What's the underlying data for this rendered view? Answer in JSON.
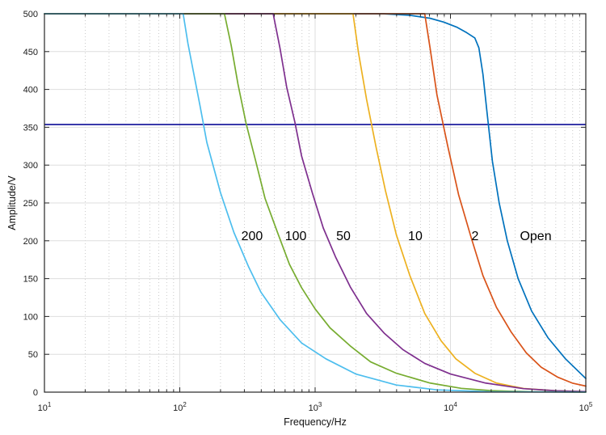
{
  "style": {
    "background": "#ffffff",
    "axis_color": "#262626",
    "grid_major_color": "#dedede",
    "grid_minor_color": "#a9a9a9",
    "tick_label_color": "#1a1a1a",
    "annotation_color": "#000000"
  },
  "chart_data": {
    "type": "line",
    "title": "",
    "xlabel": "Frequency/Hz",
    "ylabel": "Amplitude/V",
    "x_scale": "log10",
    "xlim_log10": [
      1,
      5
    ],
    "ylim": [
      0,
      500
    ],
    "y_ticks": [
      0,
      50,
      100,
      150,
      200,
      250,
      300,
      350,
      400,
      450,
      500
    ],
    "x_major_ticks_log10": [
      1,
      2,
      3,
      4,
      5
    ],
    "x_tick_labels": [
      {
        "base": "10",
        "exp": "1"
      },
      {
        "base": "10",
        "exp": "2"
      },
      {
        "base": "10",
        "exp": "3"
      },
      {
        "base": "10",
        "exp": "4"
      },
      {
        "base": "10",
        "exp": "5"
      }
    ],
    "x_minor_multiples": [
      2,
      3,
      4,
      5,
      6,
      7,
      8,
      9
    ],
    "grid": {
      "horizontal": "solid",
      "vertical_major": "solid",
      "vertical_minor": "dotted"
    },
    "legend_position": "none",
    "reference_line": {
      "amplitude": 353.6,
      "color": "#1E1E9E"
    },
    "series": [
      {
        "name": "200",
        "color": "#4DBEEE",
        "points": [
          [
            1,
            500
          ],
          [
            2.025,
            500
          ],
          [
            2.06,
            461
          ],
          [
            2.1,
            424
          ],
          [
            2.15,
            378
          ],
          [
            2.2,
            330
          ],
          [
            2.3,
            264
          ],
          [
            2.4,
            211
          ],
          [
            2.51,
            165
          ],
          [
            2.6,
            132
          ],
          [
            2.74,
            96
          ],
          [
            2.9,
            65
          ],
          [
            3.08,
            44
          ],
          [
            3.3,
            24
          ],
          [
            3.6,
            9.4
          ],
          [
            3.9,
            3
          ],
          [
            4.3,
            0.5
          ],
          [
            5.0,
            0.1
          ]
        ]
      },
      {
        "name": "100",
        "color": "#77AC30",
        "points": [
          [
            1,
            500
          ],
          [
            2.33,
            500
          ],
          [
            2.38,
            458
          ],
          [
            2.43,
            407
          ],
          [
            2.49,
            355
          ],
          [
            2.56,
            306
          ],
          [
            2.63,
            256
          ],
          [
            2.72,
            212
          ],
          [
            2.81,
            169
          ],
          [
            2.9,
            138
          ],
          [
            3.0,
            110
          ],
          [
            3.11,
            85
          ],
          [
            3.26,
            61
          ],
          [
            3.41,
            40
          ],
          [
            3.6,
            25
          ],
          [
            3.85,
            12
          ],
          [
            4.08,
            5
          ],
          [
            4.3,
            2
          ],
          [
            4.6,
            0.5
          ],
          [
            5.0,
            0.1
          ]
        ]
      },
      {
        "name": "50",
        "color": "#7E2F8E",
        "points": [
          [
            1,
            500
          ],
          [
            2.69,
            500
          ],
          [
            2.74,
            455
          ],
          [
            2.79,
            403
          ],
          [
            2.85,
            357
          ],
          [
            2.9,
            312
          ],
          [
            2.98,
            263
          ],
          [
            3.06,
            217
          ],
          [
            3.15,
            179
          ],
          [
            3.26,
            139
          ],
          [
            3.38,
            104
          ],
          [
            3.51,
            78
          ],
          [
            3.65,
            56
          ],
          [
            3.81,
            38
          ],
          [
            4.0,
            24
          ],
          [
            4.26,
            12
          ],
          [
            4.54,
            4.6
          ],
          [
            4.78,
            1.9
          ],
          [
            5.0,
            0.7
          ]
        ]
      },
      {
        "name": "10",
        "color": "#EDB120",
        "points": [
          [
            1,
            500
          ],
          [
            3.28,
            500
          ],
          [
            3.32,
            449
          ],
          [
            3.38,
            387
          ],
          [
            3.45,
            324
          ],
          [
            3.52,
            266
          ],
          [
            3.6,
            208
          ],
          [
            3.7,
            154
          ],
          [
            3.81,
            104
          ],
          [
            3.93,
            68
          ],
          [
            4.04,
            44
          ],
          [
            4.18,
            25
          ],
          [
            4.34,
            12
          ],
          [
            4.54,
            4.8
          ],
          [
            4.78,
            1.7
          ],
          [
            5.0,
            0.6
          ]
        ]
      },
      {
        "name": "2",
        "color": "#D95319",
        "points": [
          [
            1,
            500
          ],
          [
            3.81,
            500
          ],
          [
            3.85,
            454
          ],
          [
            3.9,
            393
          ],
          [
            3.98,
            325
          ],
          [
            4.06,
            261
          ],
          [
            4.15,
            206
          ],
          [
            4.24,
            154
          ],
          [
            4.34,
            112
          ],
          [
            4.45,
            79
          ],
          [
            4.56,
            52
          ],
          [
            4.67,
            33
          ],
          [
            4.79,
            20
          ],
          [
            4.9,
            12
          ],
          [
            5.0,
            8
          ]
        ]
      },
      {
        "name": "Open",
        "color": "#0072BD",
        "points": [
          [
            1,
            500
          ],
          [
            3.5,
            500
          ],
          [
            3.7,
            498
          ],
          [
            3.85,
            494
          ],
          [
            3.95,
            489
          ],
          [
            4.05,
            482
          ],
          [
            4.12,
            475
          ],
          [
            4.18,
            468
          ],
          [
            4.21,
            455
          ],
          [
            4.24,
            420
          ],
          [
            4.27,
            370
          ],
          [
            4.31,
            305
          ],
          [
            4.36,
            250
          ],
          [
            4.42,
            200
          ],
          [
            4.5,
            150
          ],
          [
            4.6,
            107
          ],
          [
            4.72,
            72
          ],
          [
            4.85,
            44
          ],
          [
            5.0,
            18
          ]
        ]
      }
    ],
    "annotations": [
      {
        "text": "200",
        "x_log10": 2.534,
        "amplitude": 207
      },
      {
        "text": "100",
        "x_log10": 2.857,
        "amplitude": 207
      },
      {
        "text": "50",
        "x_log10": 3.209,
        "amplitude": 207
      },
      {
        "text": "10",
        "x_log10": 3.74,
        "amplitude": 207
      },
      {
        "text": "2",
        "x_log10": 4.182,
        "amplitude": 207
      },
      {
        "text": "Open",
        "x_log10": 4.63,
        "amplitude": 207
      }
    ]
  }
}
